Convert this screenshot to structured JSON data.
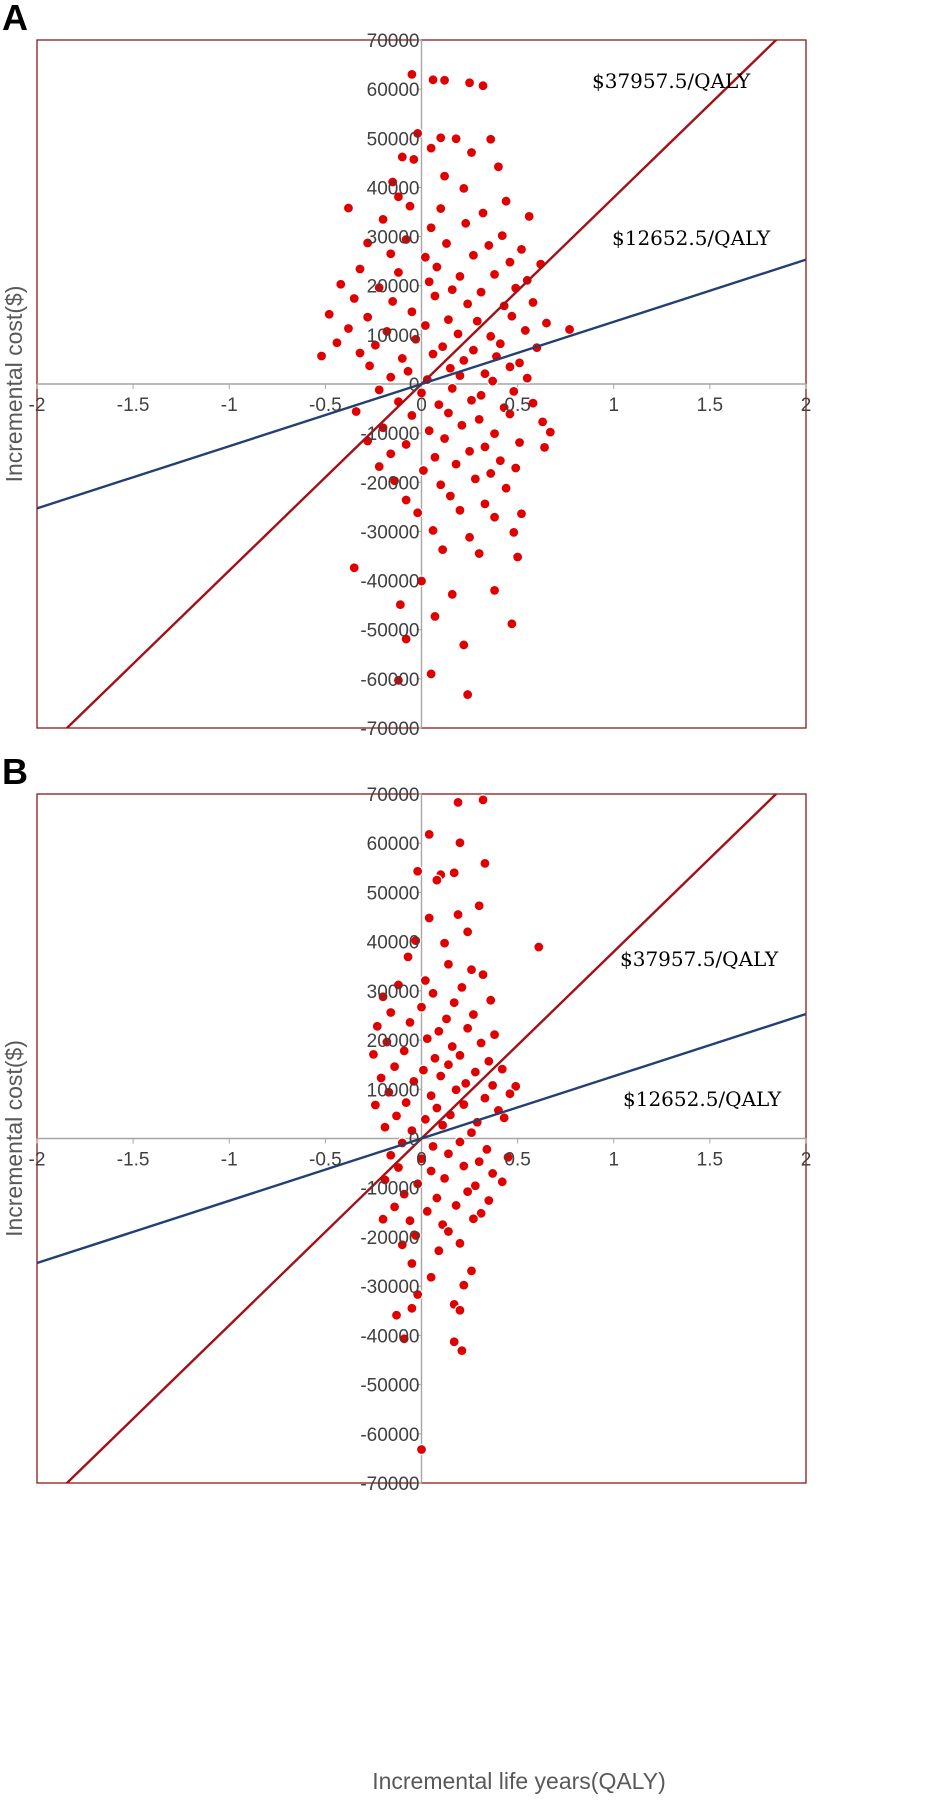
{
  "figure": {
    "xlabel": "Incremental life years(QALY)"
  },
  "chart_data": [
    {
      "type": "scatter",
      "panel": "A",
      "ylabel": "Incremental cost($)",
      "xlim": [
        -2,
        2
      ],
      "ylim": [
        -70000,
        70000
      ],
      "xticks": [
        "-2",
        "-1.5",
        "-1",
        "-0.5",
        "0",
        "0.5",
        "1",
        "1.5",
        "2"
      ],
      "yticks": [
        "70000",
        "60000",
        "50000",
        "40000",
        "30000",
        "20000",
        "10000",
        "0",
        "-10000",
        "-20000",
        "-30000",
        "-40000",
        "-50000",
        "-60000",
        "-70000"
      ],
      "point_color": "#e00000",
      "threshold_lines": [
        {
          "label": "$37957.5/QALY",
          "slope": 37957.5,
          "color": "#a50f15"
        },
        {
          "label": "$12652.5/QALY",
          "slope": 12652.5,
          "color": "#243f73"
        }
      ],
      "points": [
        [
          -0.05,
          63000
        ],
        [
          0.06,
          61900
        ],
        [
          0.12,
          61800
        ],
        [
          0.25,
          61300
        ],
        [
          0.32,
          60700
        ],
        [
          -0.02,
          51000
        ],
        [
          0.1,
          50100
        ],
        [
          0.18,
          49900
        ],
        [
          0.36,
          49800
        ],
        [
          0.05,
          48000
        ],
        [
          -0.1,
          46200
        ],
        [
          -0.04,
          45700
        ],
        [
          0.26,
          47100
        ],
        [
          0.4,
          44200
        ],
        [
          -0.15,
          41100
        ],
        [
          0.12,
          42300
        ],
        [
          -0.12,
          38100
        ],
        [
          0.22,
          39800
        ],
        [
          0.44,
          37200
        ],
        [
          -0.38,
          35800
        ],
        [
          -0.06,
          36200
        ],
        [
          0.1,
          35700
        ],
        [
          0.32,
          34800
        ],
        [
          0.56,
          34100
        ],
        [
          -0.2,
          33500
        ],
        [
          0.05,
          31800
        ],
        [
          0.23,
          32700
        ],
        [
          0.42,
          30200
        ],
        [
          -0.28,
          28700
        ],
        [
          -0.08,
          29400
        ],
        [
          0.13,
          28600
        ],
        [
          0.35,
          28200
        ],
        [
          0.52,
          27400
        ],
        [
          -0.16,
          26500
        ],
        [
          0.02,
          25800
        ],
        [
          0.27,
          26200
        ],
        [
          0.46,
          24800
        ],
        [
          0.62,
          24400
        ],
        [
          -0.32,
          23400
        ],
        [
          -0.12,
          22700
        ],
        [
          0.08,
          23800
        ],
        [
          0.2,
          21900
        ],
        [
          0.38,
          22300
        ],
        [
          0.55,
          21100
        ],
        [
          -0.42,
          20300
        ],
        [
          -0.22,
          19600
        ],
        [
          0.04,
          20800
        ],
        [
          0.16,
          19200
        ],
        [
          0.31,
          18700
        ],
        [
          0.49,
          19500
        ],
        [
          -0.35,
          17400
        ],
        [
          -0.15,
          16800
        ],
        [
          0.07,
          17900
        ],
        [
          0.24,
          16300
        ],
        [
          0.43,
          15900
        ],
        [
          0.58,
          16600
        ],
        [
          -0.48,
          14200
        ],
        [
          -0.28,
          13600
        ],
        [
          -0.05,
          14700
        ],
        [
          0.14,
          13100
        ],
        [
          0.29,
          12800
        ],
        [
          0.47,
          13800
        ],
        [
          0.65,
          12400
        ],
        [
          -0.38,
          11300
        ],
        [
          -0.18,
          10700
        ],
        [
          0.02,
          11900
        ],
        [
          0.19,
          10200
        ],
        [
          0.36,
          9700
        ],
        [
          0.54,
          10900
        ],
        [
          0.77,
          11100
        ],
        [
          -0.44,
          8400
        ],
        [
          -0.24,
          7900
        ],
        [
          -0.03,
          9100
        ],
        [
          0.11,
          7600
        ],
        [
          0.27,
          6900
        ],
        [
          0.41,
          8200
        ],
        [
          0.6,
          7400
        ],
        [
          -0.52,
          5700
        ],
        [
          -0.32,
          6300
        ],
        [
          -0.1,
          5200
        ],
        [
          0.06,
          6100
        ],
        [
          0.22,
          4800
        ],
        [
          0.39,
          5600
        ],
        [
          0.51,
          4300
        ],
        [
          -0.27,
          3700
        ],
        [
          -0.07,
          2600
        ],
        [
          0.15,
          3200
        ],
        [
          0.33,
          2100
        ],
        [
          0.46,
          3500
        ],
        [
          -0.16,
          1400
        ],
        [
          0.03,
          900
        ],
        [
          0.2,
          1700
        ],
        [
          0.37,
          600
        ],
        [
          0.55,
          1200
        ],
        [
          -0.22,
          -1200
        ],
        [
          0.0,
          -1800
        ],
        [
          0.16,
          -900
        ],
        [
          0.31,
          -2300
        ],
        [
          0.48,
          -1500
        ],
        [
          -0.12,
          -3600
        ],
        [
          0.09,
          -4200
        ],
        [
          0.26,
          -3300
        ],
        [
          0.43,
          -4800
        ],
        [
          0.58,
          -3900
        ],
        [
          -0.34,
          -5600
        ],
        [
          -0.05,
          -6400
        ],
        [
          0.14,
          -5900
        ],
        [
          0.3,
          -7200
        ],
        [
          0.46,
          -6100
        ],
        [
          0.63,
          -7700
        ],
        [
          -0.2,
          -8900
        ],
        [
          0.04,
          -9500
        ],
        [
          0.21,
          -8400
        ],
        [
          0.38,
          -10100
        ],
        [
          0.67,
          -9800
        ],
        [
          -0.28,
          -11600
        ],
        [
          -0.08,
          -12300
        ],
        [
          0.12,
          -11100
        ],
        [
          0.33,
          -12800
        ],
        [
          0.51,
          -11900
        ],
        [
          0.64,
          -12900
        ],
        [
          -0.16,
          -14200
        ],
        [
          0.07,
          -14900
        ],
        [
          0.25,
          -13700
        ],
        [
          0.41,
          -15600
        ],
        [
          -0.22,
          -16800
        ],
        [
          0.01,
          -17600
        ],
        [
          0.18,
          -16300
        ],
        [
          0.36,
          -18200
        ],
        [
          0.49,
          -17100
        ],
        [
          -0.14,
          -19700
        ],
        [
          0.1,
          -20500
        ],
        [
          0.28,
          -19300
        ],
        [
          0.44,
          -21200
        ],
        [
          -0.08,
          -23600
        ],
        [
          0.15,
          -22800
        ],
        [
          0.33,
          -24400
        ],
        [
          -0.02,
          -26200
        ],
        [
          0.2,
          -25700
        ],
        [
          0.38,
          -27100
        ],
        [
          0.52,
          -26400
        ],
        [
          0.06,
          -29800
        ],
        [
          0.25,
          -31200
        ],
        [
          0.48,
          -30200
        ],
        [
          0.5,
          -35200
        ],
        [
          0.11,
          -33700
        ],
        [
          0.3,
          -34500
        ],
        [
          -0.35,
          -37400
        ],
        [
          0.0,
          -40100
        ],
        [
          0.16,
          -42800
        ],
        [
          0.38,
          -42000
        ],
        [
          -0.11,
          -44900
        ],
        [
          0.07,
          -47300
        ],
        [
          0.47,
          -48800
        ],
        [
          -0.08,
          -51900
        ],
        [
          0.22,
          -53100
        ],
        [
          0.05,
          -59000
        ],
        [
          -0.12,
          -60300
        ],
        [
          0.24,
          -63200
        ]
      ]
    },
    {
      "type": "scatter",
      "panel": "B",
      "ylabel": "Incremental cost($)",
      "xlim": [
        -2,
        2
      ],
      "ylim": [
        -70000,
        70000
      ],
      "xticks": [
        "-2",
        "-1.5",
        "-1",
        "-0.5",
        "0",
        "0.5",
        "1",
        "1.5",
        "2"
      ],
      "yticks": [
        "70000",
        "60000",
        "50000",
        "40000",
        "30000",
        "20000",
        "10000",
        "0",
        "-10000",
        "-20000",
        "-30000",
        "-40000",
        "-50000",
        "-60000",
        "-70000"
      ],
      "point_color": "#e00000",
      "threshold_lines": [
        {
          "label": "$37957.5/QALY",
          "slope": 37957.5,
          "color": "#a50f15"
        },
        {
          "label": "$12652.5/QALY",
          "slope": 12652.5,
          "color": "#243f73"
        }
      ],
      "points": [
        [
          0.19,
          68300
        ],
        [
          0.32,
          68800
        ],
        [
          0.04,
          61800
        ],
        [
          0.2,
          60100
        ],
        [
          0.33,
          55900
        ],
        [
          -0.02,
          54300
        ],
        [
          0.1,
          53600
        ],
        [
          0.17,
          54000
        ],
        [
          0.08,
          52500
        ],
        [
          0.3,
          47300
        ],
        [
          0.04,
          44800
        ],
        [
          0.19,
          45500
        ],
        [
          0.24,
          42000
        ],
        [
          -0.03,
          40200
        ],
        [
          0.12,
          39700
        ],
        [
          0.61,
          38900
        ],
        [
          -0.07,
          36900
        ],
        [
          0.14,
          35400
        ],
        [
          0.26,
          34300
        ],
        [
          0.32,
          33300
        ],
        [
          -0.12,
          31200
        ],
        [
          0.02,
          32100
        ],
        [
          0.21,
          30700
        ],
        [
          -0.2,
          28800
        ],
        [
          0.06,
          29500
        ],
        [
          0.17,
          27600
        ],
        [
          0.36,
          28100
        ],
        [
          -0.16,
          25600
        ],
        [
          0.0,
          26700
        ],
        [
          0.13,
          24300
        ],
        [
          0.27,
          25200
        ],
        [
          -0.23,
          22800
        ],
        [
          -0.06,
          23600
        ],
        [
          0.09,
          21800
        ],
        [
          0.24,
          22400
        ],
        [
          0.38,
          21100
        ],
        [
          -0.18,
          19600
        ],
        [
          0.03,
          20300
        ],
        [
          0.16,
          18700
        ],
        [
          0.31,
          19400
        ],
        [
          -0.25,
          17100
        ],
        [
          -0.09,
          17800
        ],
        [
          0.07,
          16300
        ],
        [
          0.2,
          16900
        ],
        [
          0.35,
          15700
        ],
        [
          -0.14,
          14600
        ],
        [
          0.01,
          13900
        ],
        [
          0.14,
          15000
        ],
        [
          0.28,
          13500
        ],
        [
          0.42,
          14100
        ],
        [
          -0.21,
          12300
        ],
        [
          -0.04,
          11600
        ],
        [
          0.1,
          12700
        ],
        [
          0.23,
          11200
        ],
        [
          0.37,
          10800
        ],
        [
          0.49,
          10600
        ],
        [
          -0.17,
          9400
        ],
        [
          0.05,
          8700
        ],
        [
          0.18,
          9900
        ],
        [
          0.33,
          8200
        ],
        [
          0.46,
          9100
        ],
        [
          -0.24,
          6800
        ],
        [
          -0.08,
          7300
        ],
        [
          0.08,
          6200
        ],
        [
          0.22,
          6900
        ],
        [
          0.4,
          5700
        ],
        [
          -0.13,
          4600
        ],
        [
          0.02,
          3900
        ],
        [
          0.15,
          4800
        ],
        [
          0.29,
          3300
        ],
        [
          0.43,
          4200
        ],
        [
          -0.19,
          2300
        ],
        [
          -0.05,
          1600
        ],
        [
          0.11,
          2700
        ],
        [
          0.26,
          1200
        ],
        [
          -0.1,
          -900
        ],
        [
          0.06,
          -1600
        ],
        [
          0.2,
          -700
        ],
        [
          0.34,
          -2200
        ],
        [
          -0.16,
          -3400
        ],
        [
          0.0,
          -4100
        ],
        [
          0.14,
          -3100
        ],
        [
          0.3,
          -4700
        ],
        [
          0.45,
          -3800
        ],
        [
          -0.12,
          -5900
        ],
        [
          0.05,
          -6600
        ],
        [
          0.22,
          -5600
        ],
        [
          0.37,
          -7100
        ],
        [
          -0.19,
          -8400
        ],
        [
          -0.02,
          -9200
        ],
        [
          0.12,
          -8100
        ],
        [
          0.28,
          -9600
        ],
        [
          0.42,
          -8800
        ],
        [
          -0.09,
          -11300
        ],
        [
          0.08,
          -12100
        ],
        [
          0.24,
          -10800
        ],
        [
          0.35,
          -12600
        ],
        [
          -0.14,
          -13900
        ],
        [
          0.03,
          -14800
        ],
        [
          0.18,
          -13600
        ],
        [
          0.31,
          -15200
        ],
        [
          -0.06,
          -16700
        ],
        [
          0.11,
          -17500
        ],
        [
          0.27,
          -16300
        ],
        [
          -0.2,
          -16400
        ],
        [
          -0.03,
          -19700
        ],
        [
          0.14,
          -18900
        ],
        [
          -0.1,
          -21600
        ],
        [
          0.09,
          -22800
        ],
        [
          0.2,
          -21300
        ],
        [
          -0.05,
          -25400
        ],
        [
          0.26,
          -26900
        ],
        [
          0.05,
          -28200
        ],
        [
          0.22,
          -29800
        ],
        [
          -0.02,
          -31700
        ],
        [
          0.17,
          -33700
        ],
        [
          -0.05,
          -34500
        ],
        [
          0.2,
          -34900
        ],
        [
          -0.13,
          -35900
        ],
        [
          -0.09,
          -40700
        ],
        [
          0.17,
          -41300
        ],
        [
          0.21,
          -43100
        ],
        [
          0.0,
          -63200
        ]
      ]
    }
  ]
}
